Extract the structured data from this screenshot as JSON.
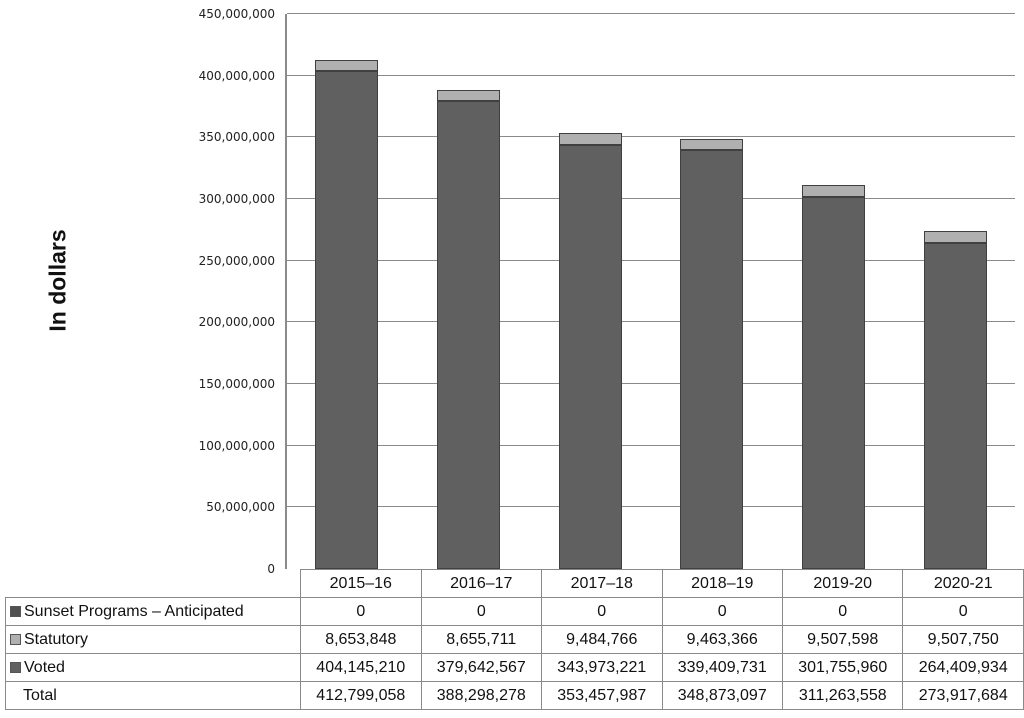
{
  "chart_data": {
    "type": "bar",
    "stacked": true,
    "title": "",
    "xlabel": "",
    "ylabel": "In dollars",
    "ylim": [
      0,
      450000000
    ],
    "yticks": [
      "0",
      "50,000,000",
      "100,000,000",
      "150,000,000",
      "200,000,000",
      "250,000,000",
      "300,000,000",
      "350,000,000",
      "400,000,000",
      "450,000,000"
    ],
    "grid": true,
    "legend_position": "data-table",
    "categories": [
      "2015–16",
      "2016–17",
      "2017–18",
      "2018–19",
      "2019-20",
      "2020-21"
    ],
    "series": [
      {
        "name": "Sunset Programs – Anticipated",
        "color": "#505050",
        "values": [
          0,
          0,
          0,
          0,
          0,
          0
        ],
        "display": [
          "0",
          "0",
          "0",
          "0",
          "0",
          "0"
        ]
      },
      {
        "name": "Statutory",
        "color": "#b0b0b0",
        "values": [
          8653848,
          8655711,
          9484766,
          9463366,
          9507598,
          9507750
        ],
        "display": [
          "8,653,848",
          "8,655,711",
          "9,484,766",
          "9,463,366",
          "9,507,598",
          "9,507,750"
        ]
      },
      {
        "name": "Voted",
        "color": "#606060",
        "values": [
          404145210,
          379642567,
          343973221,
          339409731,
          301755960,
          264409934
        ],
        "display": [
          "404,145,210",
          "379,642,567",
          "343,973,221",
          "339,409,731",
          "301,755,960",
          "264,409,934"
        ]
      }
    ],
    "totals": {
      "name": "Total",
      "values": [
        412799058,
        388298278,
        353457987,
        348873097,
        311263558,
        273917684
      ],
      "display": [
        "412,799,058",
        "388,298,278",
        "353,457,987",
        "348,873,097",
        "311,263,558",
        "273,917,684"
      ]
    }
  }
}
